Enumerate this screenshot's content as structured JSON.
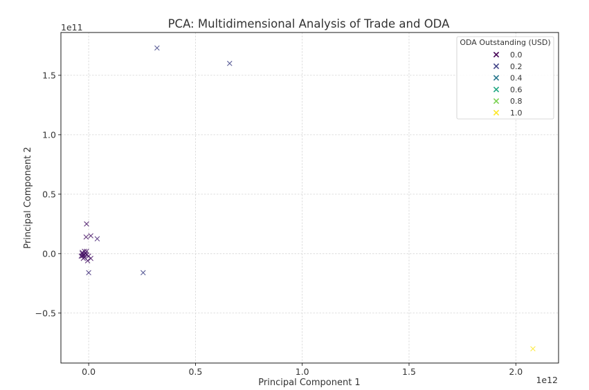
{
  "chart_data": {
    "type": "scatter",
    "title": "PCA: Multidimensional Analysis of Trade and ODA",
    "xlabel": "Principal Component 1",
    "ylabel": "Principal Component 2",
    "x_offset_text": "1e12",
    "y_offset_text": "1e11",
    "xlim": [
      -0.13,
      2.2
    ],
    "ylim": [
      -0.92,
      1.86
    ],
    "x_ticks": [
      0.0,
      0.5,
      1.0,
      1.5,
      2.0
    ],
    "x_tick_labels": [
      "0.0",
      "0.5",
      "1.0",
      "1.5",
      "2.0"
    ],
    "y_ticks": [
      -0.5,
      0.0,
      0.5,
      1.0,
      1.5
    ],
    "y_tick_labels": [
      "−0.5",
      "0.0",
      "0.5",
      "1.0",
      "1.5"
    ],
    "grid": true,
    "marker": "x",
    "colormap": "viridis",
    "points": [
      {
        "x": 0.32,
        "y": 1.73,
        "c": 0.2
      },
      {
        "x": 0.66,
        "y": 1.6,
        "c": 0.2
      },
      {
        "x": 2.08,
        "y": -0.8,
        "c": 1.0
      },
      {
        "x": 0.255,
        "y": -0.16,
        "c": 0.2
      },
      {
        "x": -0.01,
        "y": 0.25,
        "c": 0.05
      },
      {
        "x": -0.012,
        "y": 0.14,
        "c": 0.05
      },
      {
        "x": 0.01,
        "y": 0.15,
        "c": 0.05
      },
      {
        "x": 0.04,
        "y": 0.125,
        "c": 0.1
      },
      {
        "x": 0.0,
        "y": -0.16,
        "c": 0.15
      },
      {
        "x": 0.01,
        "y": -0.04,
        "c": 0.05
      },
      {
        "x": 0.0,
        "y": -0.02,
        "c": 0.05
      },
      {
        "x": -0.02,
        "y": -0.01,
        "c": 0.05
      },
      {
        "x": -0.03,
        "y": 0.01,
        "c": 0.05
      },
      {
        "x": -0.03,
        "y": -0.02,
        "c": 0.05
      },
      {
        "x": -0.025,
        "y": -0.04,
        "c": 0.05
      },
      {
        "x": -0.035,
        "y": -0.02,
        "c": 0.05
      },
      {
        "x": -0.02,
        "y": 0.02,
        "c": 0.05
      },
      {
        "x": -0.015,
        "y": 0.0,
        "c": 0.05
      },
      {
        "x": -0.01,
        "y": -0.01,
        "c": 0.05
      },
      {
        "x": -0.02,
        "y": -0.03,
        "c": 0.05
      },
      {
        "x": -0.005,
        "y": -0.06,
        "c": 0.05
      },
      {
        "x": -0.01,
        "y": 0.02,
        "c": 0.05
      },
      {
        "x": -0.025,
        "y": -0.015,
        "c": 0.05
      },
      {
        "x": -0.03,
        "y": 0.0,
        "c": 0.05
      }
    ],
    "legend": {
      "title": "ODA Outstanding (USD)",
      "position": "upper right",
      "entries": [
        {
          "label": "0.0",
          "color": "#440154"
        },
        {
          "label": "0.2",
          "color": "#414487"
        },
        {
          "label": "0.4",
          "color": "#2a788e"
        },
        {
          "label": "0.6",
          "color": "#22a884"
        },
        {
          "label": "0.8",
          "color": "#7ad151"
        },
        {
          "label": "1.0",
          "color": "#fde725"
        }
      ]
    }
  }
}
